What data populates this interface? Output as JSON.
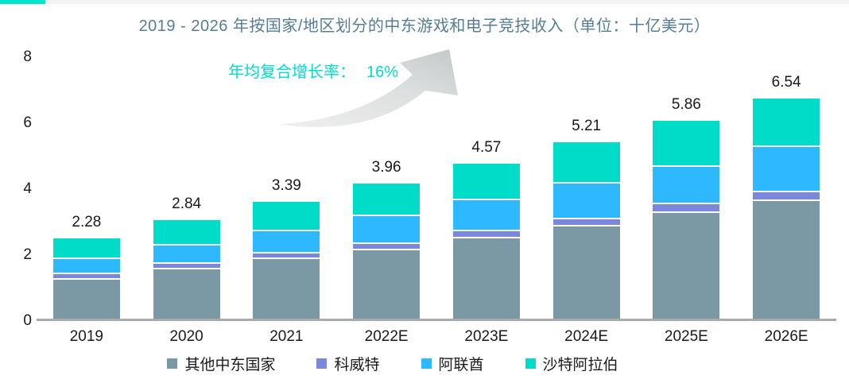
{
  "page": {
    "strip_color": "#f1f2f2",
    "accent_color": "#00e5cc",
    "axis_line_color": "#ababab",
    "text_color": "#1a1a1a",
    "title_color": "#567d96"
  },
  "title": "2019 - 2026 年按国家/地区划分的中东游戏和电子竞技收入（单位：十亿美元）",
  "annotation": {
    "label": "年均复合增长率：",
    "value": "16%",
    "color": "#00ddca",
    "arrow": "gray-swoosh-up-right"
  },
  "chart_data": {
    "type": "bar",
    "stacked": true,
    "title": "2019 - 2026 年按国家/地区划分的中东游戏和电子竞技收入（单位：十亿美元）",
    "unit": "十亿美元",
    "categories": [
      "2019",
      "2020",
      "2021",
      "2022E",
      "2023E",
      "2024E",
      "2025E",
      "2026E"
    ],
    "series": [
      {
        "name": "其他中东国家",
        "color": "#7b99a4",
        "values": [
          1.18,
          1.5,
          1.8,
          2.08,
          2.44,
          2.8,
          3.21,
          3.57
        ]
      },
      {
        "name": "科威特",
        "color": "#7b87db",
        "values": [
          0.11,
          0.12,
          0.13,
          0.15,
          0.16,
          0.18,
          0.21,
          0.22
        ]
      },
      {
        "name": "阿联酋",
        "color": "#2eb8fe",
        "values": [
          0.4,
          0.5,
          0.62,
          0.8,
          0.9,
          1.03,
          1.09,
          1.33
        ]
      },
      {
        "name": "沙特阿拉伯",
        "color": "#00dcc8",
        "values": [
          0.59,
          0.72,
          0.84,
          0.93,
          1.07,
          1.2,
          1.35,
          1.42
        ]
      }
    ],
    "totals": [
      "2.28",
      "2.84",
      "3.39",
      "3.96",
      "4.57",
      "5.21",
      "5.86",
      "6.54"
    ],
    "yticks": [
      0,
      2,
      4,
      6,
      8
    ],
    "ylim": [
      0,
      8
    ],
    "grid": false,
    "legend_position": "bottom",
    "cagr_annotation": "年均复合增长率： 16%"
  }
}
